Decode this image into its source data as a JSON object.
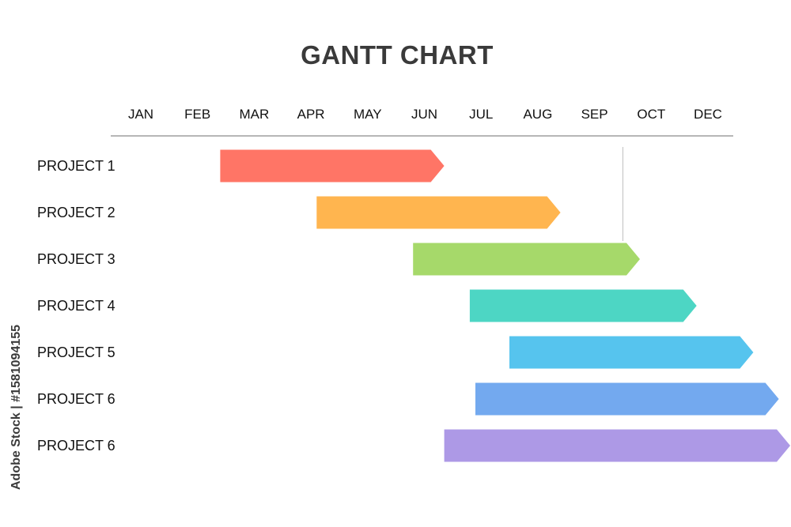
{
  "side_text": "Adobe Stock | #1581094155",
  "colors": {
    "title": "#3a3a3a",
    "axis_line": "#8a8a8a",
    "marker_line": "#c8c8c8",
    "text": "#111111"
  },
  "chart_data": {
    "type": "gantt",
    "title": "GANTT CHART",
    "months": [
      "JAN",
      "FEB",
      "MAR",
      "APR",
      "MAY",
      "JUN",
      "JUL",
      "AUG",
      "SEP",
      "OCT",
      "DEC"
    ],
    "tasks": [
      {
        "label": "PROJECT 1",
        "start": 1.4,
        "end": 5.35,
        "color": "#ff7566"
      },
      {
        "label": "PROJECT 2",
        "start": 3.1,
        "end": 7.4,
        "color": "#ffb54f"
      },
      {
        "label": "PROJECT 3",
        "start": 4.8,
        "end": 8.8,
        "color": "#a6d96a"
      },
      {
        "label": "PROJECT 4",
        "start": 5.8,
        "end": 9.8,
        "color": "#4dd6c4"
      },
      {
        "label": "PROJECT 5",
        "start": 6.5,
        "end": 10.8,
        "color": "#56c4ee"
      },
      {
        "label": "PROJECT 6",
        "start": 5.9,
        "end": 11.25,
        "color": "#73a9ef"
      },
      {
        "label": "PROJECT 6",
        "start": 5.35,
        "end": 11.45,
        "color": "#ad99e6"
      }
    ],
    "marker": {
      "x": 8.5
    },
    "grid": false,
    "legend": "none"
  }
}
